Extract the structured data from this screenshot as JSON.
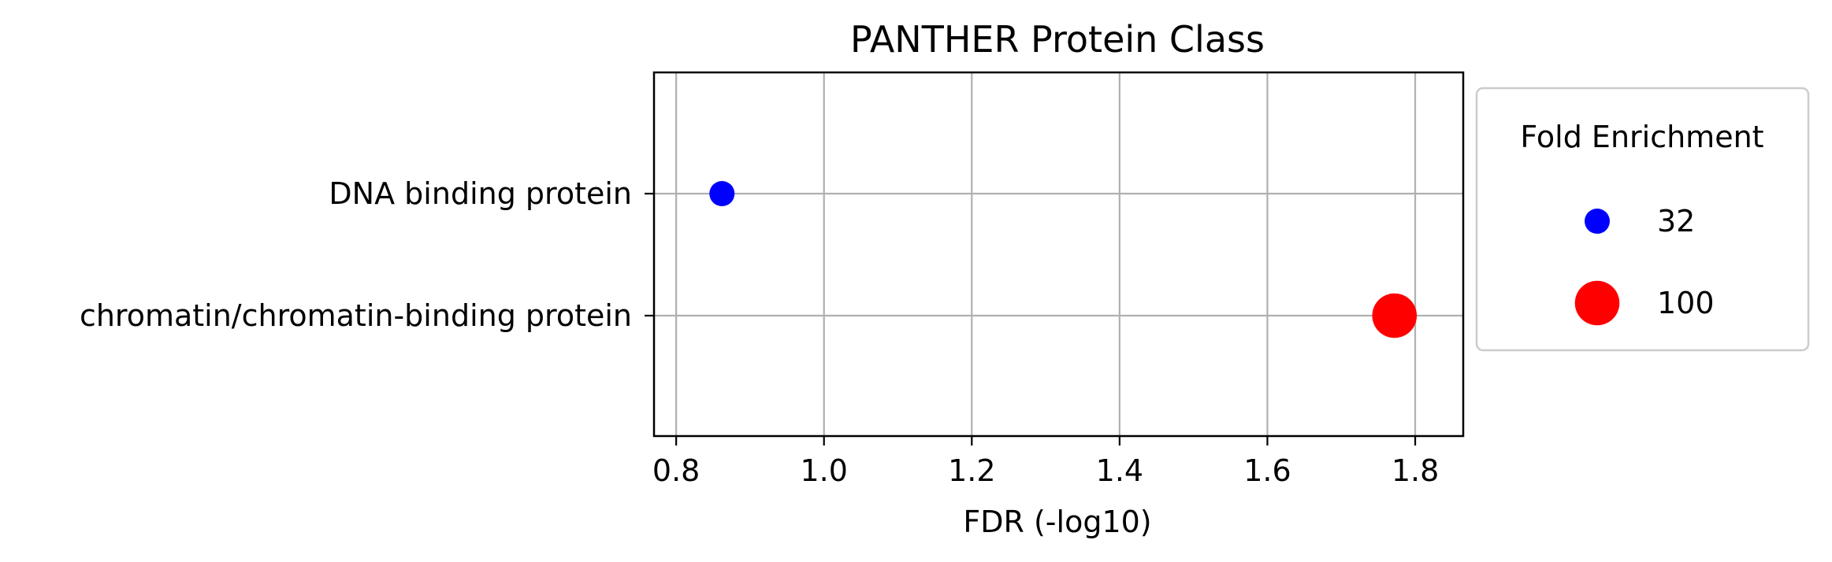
{
  "chart_data": {
    "type": "scatter",
    "title": "PANTHER Protein Class",
    "xlabel": "FDR (-log10)",
    "ylabel": "",
    "xlim": [
      0.77,
      1.865
    ],
    "xticks": [
      0.8,
      1.0,
      1.2,
      1.4,
      1.6,
      1.8
    ],
    "xtick_labels": [
      "0.8",
      "1.0",
      "1.2",
      "1.4",
      "1.6",
      "1.8"
    ],
    "categories": [
      "DNA binding protein",
      "chromatin/chromatin-binding protein"
    ],
    "grid": true,
    "points": [
      {
        "category": "DNA binding protein",
        "x": 0.862,
        "fold_enrichment": 32,
        "color": "#0000ff"
      },
      {
        "category": "chromatin/chromatin-binding protein",
        "x": 1.772,
        "fold_enrichment": 100,
        "color": "#ff0000"
      }
    ],
    "legend": {
      "title": "Fold Enrichment",
      "placement": "outside-right",
      "entries": [
        {
          "label": "32",
          "value": 32,
          "color": "#0000ff"
        },
        {
          "label": "100",
          "value": 100,
          "color": "#ff0000"
        }
      ]
    }
  }
}
